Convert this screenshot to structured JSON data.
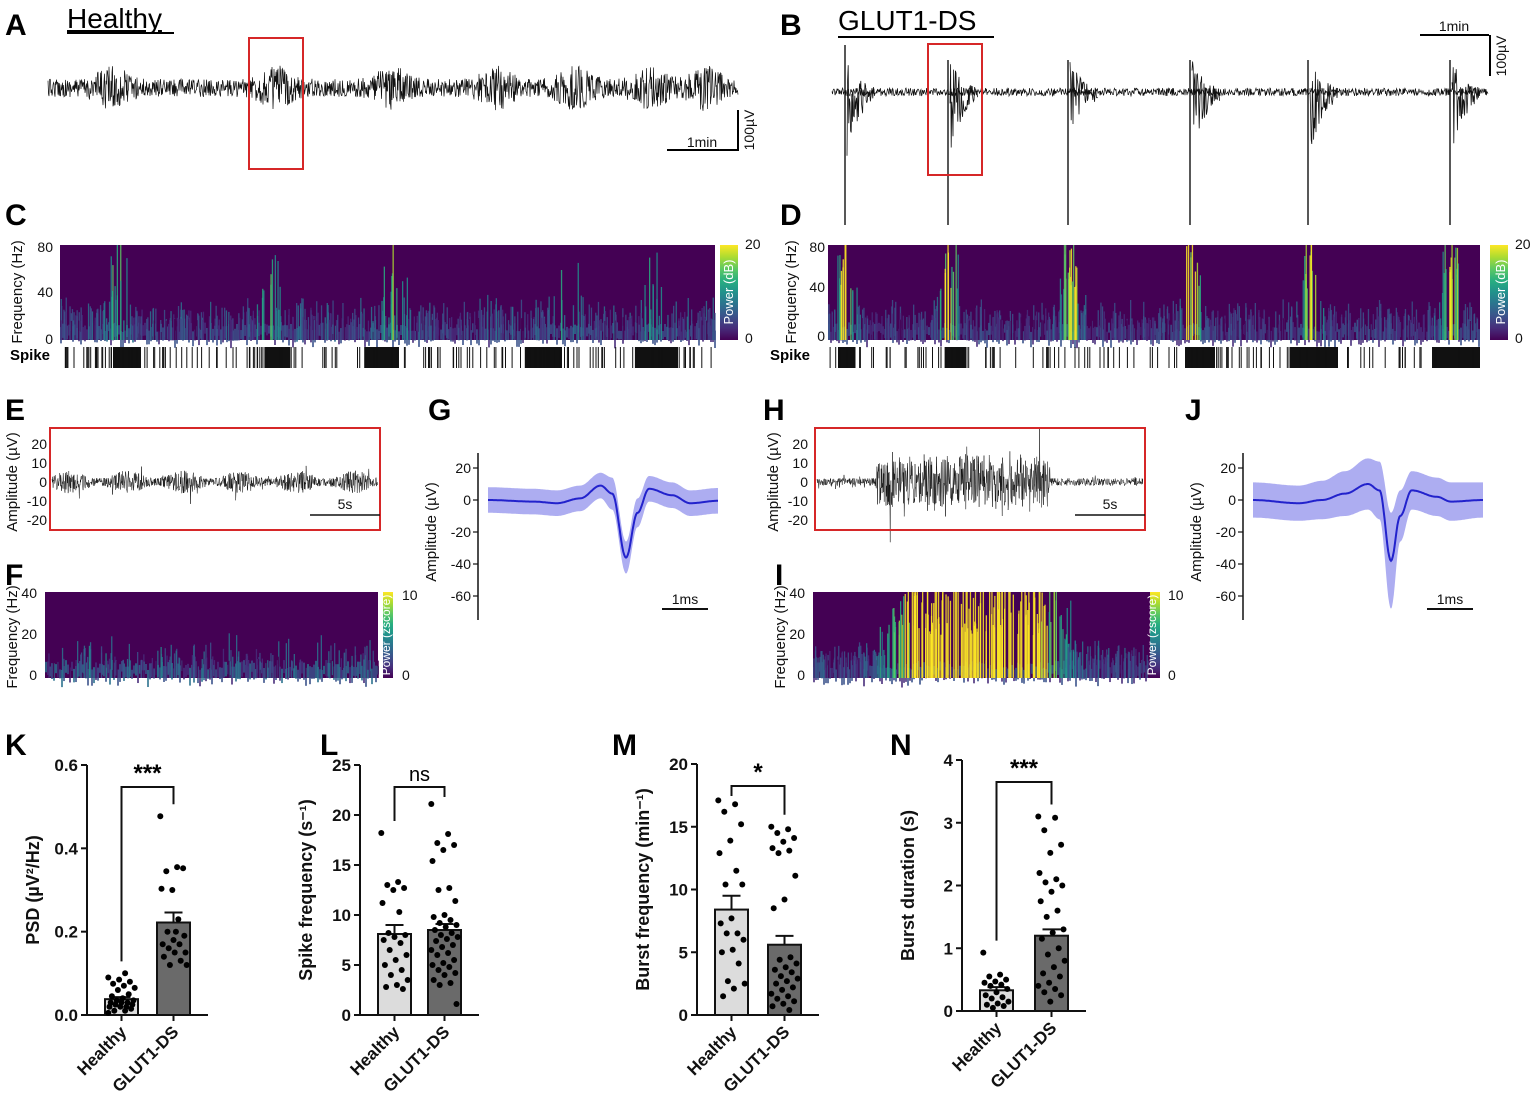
{
  "colors": {
    "trace": "#111111",
    "highlight_box": "#d62728",
    "waveform": "#2222cc",
    "waveform_band": "#9999ee",
    "healthy_bar": "#dcdcdc",
    "glut1_bar": "#6a6a6a",
    "spectrogram_low": "#440154",
    "spectrogram_high": "#fde725"
  },
  "panels": {
    "A": {
      "letter": "A",
      "title": "Healthy",
      "scale_time": "1min",
      "scale_amp": "100µV"
    },
    "B": {
      "letter": "B",
      "title": "GLUT1-DS",
      "scale_time": "1min",
      "scale_amp": "100µV"
    },
    "C": {
      "letter": "C",
      "ylabel": "Frequency (Hz)",
      "yticks": [
        "80",
        "40",
        "0"
      ],
      "colorbar_label": "Power (dB)",
      "colorbar_ticks": [
        "20",
        "0"
      ],
      "raster_label": "Spike"
    },
    "D": {
      "letter": "D",
      "ylabel": "Frequency (Hz)",
      "yticks": [
        "80",
        "40",
        "0"
      ],
      "colorbar_label": "Power (dB)",
      "colorbar_ticks": [
        "20",
        "0"
      ],
      "raster_label": "Spike"
    },
    "E": {
      "letter": "E",
      "ylabel": "Amplitude (µV)",
      "yticks": [
        "20",
        "10",
        "0",
        "-10",
        "-20"
      ],
      "scale_time": "5s"
    },
    "F": {
      "letter": "F",
      "ylabel": "Frequency (Hz)",
      "yticks": [
        "40",
        "20",
        "0"
      ],
      "colorbar_label": "Power (zscore)",
      "colorbar_ticks": [
        "10",
        "0"
      ]
    },
    "G": {
      "letter": "G",
      "ylabel": "Amplitude (µV)",
      "yticks": [
        "20",
        "0",
        "-20",
        "-40",
        "-60"
      ],
      "scale_time": "1ms"
    },
    "H": {
      "letter": "H",
      "ylabel": "Amplitude (µV)",
      "yticks": [
        "20",
        "10",
        "0",
        "-10",
        "-20"
      ],
      "scale_time": "5s"
    },
    "I": {
      "letter": "I",
      "ylabel": "Frequency (Hz)",
      "yticks": [
        "40",
        "20",
        "0"
      ],
      "colorbar_label": "Power (zscore)",
      "colorbar_ticks": [
        "10",
        "0"
      ]
    },
    "J": {
      "letter": "J",
      "ylabel": "Amplitude (µV)",
      "yticks": [
        "20",
        "0",
        "-20",
        "-40",
        "-60"
      ],
      "scale_time": "1ms"
    }
  },
  "chart_data": [
    {
      "panel": "G",
      "type": "line",
      "ylabel": "Amplitude (µV)",
      "ylim": [
        -70,
        30
      ],
      "x_ms": [
        0,
        1,
        1.5,
        2,
        2.45,
        2.7,
        3.0,
        3.25,
        3.5,
        4.0,
        4.4,
        5
      ],
      "mean": [
        0,
        -1,
        -2,
        1,
        9,
        4,
        -36,
        -8,
        7,
        3,
        -2,
        -0.5
      ],
      "sd": [
        8,
        8,
        8,
        8,
        8,
        10,
        10,
        9,
        8,
        8,
        8,
        8
      ]
    },
    {
      "panel": "J",
      "type": "line",
      "ylabel": "Amplitude (µV)",
      "ylim": [
        -70,
        30
      ],
      "x_ms": [
        0,
        1,
        1.5,
        2,
        2.5,
        2.75,
        3.0,
        3.2,
        3.45,
        4.0,
        4.3,
        5
      ],
      "mean": [
        0,
        -2,
        0,
        4,
        10,
        6,
        -38,
        -10,
        6,
        2,
        -1,
        0
      ],
      "sd": [
        11,
        11,
        12,
        14,
        16,
        18,
        30,
        16,
        12,
        12,
        12,
        11
      ]
    },
    {
      "panel": "K",
      "letter": "K",
      "type": "bar",
      "categories": [
        "Healthy",
        "GLUT1-DS"
      ],
      "values": [
        0.038,
        0.222
      ],
      "sem": [
        0.005,
        0.024
      ],
      "ylabel": "PSD (µV²/Hz)",
      "ylim": [
        0,
        0.6
      ],
      "yticks": [
        "0.0",
        "0.2",
        "0.4",
        "0.6"
      ],
      "significance": "***",
      "points": [
        [
          0.005,
          0.01,
          0.01,
          0.015,
          0.02,
          0.02,
          0.02,
          0.025,
          0.025,
          0.03,
          0.03,
          0.03,
          0.035,
          0.035,
          0.04,
          0.045,
          0.05,
          0.06,
          0.065,
          0.07,
          0.075,
          0.08,
          0.085,
          0.09,
          0.1
        ],
        [
          0.477,
          0.355,
          0.345,
          0.352,
          0.3,
          0.303,
          0.23,
          0.2,
          0.19,
          0.18,
          0.17,
          0.17,
          0.16,
          0.15,
          0.15,
          0.14,
          0.13,
          0.12,
          0.12,
          0.2
        ]
      ]
    },
    {
      "panel": "L",
      "letter": "L",
      "type": "bar",
      "categories": [
        "Healthy",
        "GLUT1-DS"
      ],
      "values": [
        8.1,
        8.5
      ],
      "sem": [
        0.9,
        0.6
      ],
      "ylabel": "Spike frequency (s⁻¹)",
      "ylim": [
        0,
        25
      ],
      "yticks": [
        "0",
        "5",
        "10",
        "15",
        "20",
        "25"
      ],
      "significance": "ns",
      "points": [
        [
          18.2,
          13.3,
          13.0,
          12.7,
          12.5,
          11.2,
          10.3,
          8.2,
          8.0,
          7.8,
          7.5,
          7.2,
          6.5,
          6.0,
          5.5,
          5.0,
          4.5,
          4.0,
          3.5,
          3.0,
          2.8,
          2.6
        ],
        [
          21.1,
          18.1,
          17.2,
          17.0,
          16.5,
          15.4,
          12.7,
          12.5,
          11.4,
          10.0,
          9.8,
          9.5,
          9.2,
          9.0,
          8.8,
          8.5,
          8.2,
          8.0,
          7.8,
          7.6,
          7.4,
          7.0,
          6.8,
          6.5,
          6.2,
          6.0,
          5.5,
          5.2,
          5.0,
          4.8,
          4.5,
          4.2,
          4.0,
          3.5,
          3.2,
          3.0,
          1.1
        ]
      ]
    },
    {
      "panel": "M",
      "letter": "M",
      "type": "bar",
      "categories": [
        "Healthy",
        "GLUT1-DS"
      ],
      "values": [
        8.4,
        5.6
      ],
      "sem": [
        1.1,
        0.7
      ],
      "ylabel": "Burst frequency (min⁻¹)",
      "ylim": [
        0,
        20
      ],
      "yticks": [
        "0",
        "5",
        "10",
        "15",
        "20"
      ],
      "significance": "*",
      "points": [
        [
          17.1,
          16.8,
          16.2,
          15.2,
          13.9,
          12.9,
          11.5,
          10.4,
          10.4,
          7.7,
          7.3,
          6.5,
          6.5,
          6.0,
          5.2,
          5.0,
          4.1,
          2.7,
          2.5,
          2.1,
          1.5
        ],
        [
          15.0,
          14.8,
          14.5,
          14.1,
          13.8,
          13.3,
          13.1,
          12.9,
          11.1,
          9.2,
          8.5,
          4.6,
          4.4,
          4.1,
          3.8,
          3.6,
          3.4,
          3.1,
          2.9,
          2.7,
          2.5,
          2.2,
          2.0,
          1.7,
          1.5,
          1.3,
          1.1,
          0.9,
          0.7,
          0.4
        ]
      ]
    },
    {
      "panel": "N",
      "letter": "N",
      "type": "bar",
      "categories": [
        "Healthy",
        "GLUT1-DS"
      ],
      "values": [
        0.33,
        1.2
      ],
      "sem": [
        0.05,
        0.1
      ],
      "ylabel": "Burst duration (s)",
      "ylim": [
        0,
        4
      ],
      "yticks": [
        "0",
        "1",
        "2",
        "3",
        "4"
      ],
      "significance": "***",
      "points": [
        [
          0.93,
          0.58,
          0.55,
          0.5,
          0.47,
          0.45,
          0.42,
          0.4,
          0.35,
          0.3,
          0.25,
          0.22,
          0.2,
          0.15,
          0.12,
          0.1,
          0.08,
          0.05
        ],
        [
          3.1,
          3.08,
          2.88,
          2.65,
          2.52,
          2.2,
          2.1,
          2.05,
          2.0,
          1.9,
          1.75,
          1.6,
          1.5,
          1.3,
          1.25,
          1.15,
          1.0,
          0.9,
          0.8,
          0.7,
          0.6,
          0.55,
          0.45,
          0.4,
          0.35,
          0.3,
          0.25,
          0.15
        ]
      ]
    }
  ]
}
